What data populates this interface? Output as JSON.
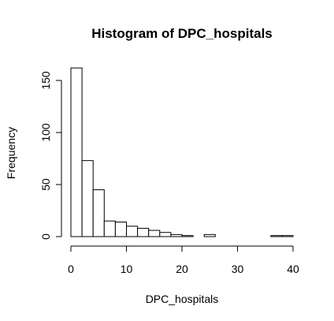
{
  "chart_data": {
    "type": "bar",
    "title": "Histogram of DPC_hospitals",
    "xlabel": "DPC_hospitals",
    "ylabel": "Frequency",
    "xlim": [
      0,
      40
    ],
    "ylim": [
      0,
      160
    ],
    "x_ticks": [
      0,
      10,
      20,
      30,
      40
    ],
    "y_ticks": [
      0,
      50,
      100,
      150
    ],
    "bin_width": 2,
    "bins": [
      {
        "start": 0,
        "end": 2,
        "count": 162
      },
      {
        "start": 2,
        "end": 4,
        "count": 73
      },
      {
        "start": 4,
        "end": 6,
        "count": 45
      },
      {
        "start": 6,
        "end": 8,
        "count": 15
      },
      {
        "start": 8,
        "end": 10,
        "count": 14
      },
      {
        "start": 10,
        "end": 12,
        "count": 10
      },
      {
        "start": 12,
        "end": 14,
        "count": 8
      },
      {
        "start": 14,
        "end": 16,
        "count": 6
      },
      {
        "start": 16,
        "end": 18,
        "count": 4
      },
      {
        "start": 18,
        "end": 20,
        "count": 2
      },
      {
        "start": 20,
        "end": 22,
        "count": 1
      },
      {
        "start": 22,
        "end": 24,
        "count": 0
      },
      {
        "start": 24,
        "end": 26,
        "count": 2
      },
      {
        "start": 26,
        "end": 28,
        "count": 0
      },
      {
        "start": 28,
        "end": 30,
        "count": 0
      },
      {
        "start": 30,
        "end": 32,
        "count": 0
      },
      {
        "start": 32,
        "end": 34,
        "count": 0
      },
      {
        "start": 34,
        "end": 36,
        "count": 0
      },
      {
        "start": 36,
        "end": 38,
        "count": 1
      },
      {
        "start": 38,
        "end": 40,
        "count": 1
      }
    ]
  }
}
